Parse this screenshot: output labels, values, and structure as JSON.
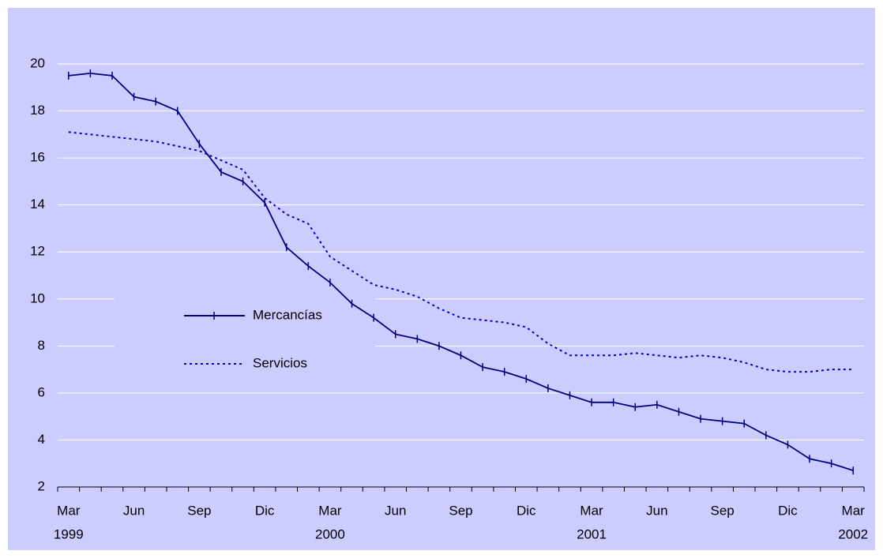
{
  "chart_data": {
    "type": "line",
    "categories": [
      "Mar",
      null,
      null,
      "Jun",
      null,
      null,
      "Sep",
      null,
      null,
      "Dic",
      null,
      null,
      "Mar",
      null,
      null,
      "Jun",
      null,
      null,
      "Sep",
      null,
      null,
      "Dic",
      null,
      null,
      "Mar",
      null,
      null,
      "Jun",
      null,
      null,
      "Sep",
      null,
      null,
      "Dic",
      null,
      null,
      "Mar"
    ],
    "years": [
      "1999",
      null,
      null,
      null,
      null,
      null,
      null,
      null,
      null,
      null,
      null,
      null,
      "2000",
      null,
      null,
      null,
      null,
      null,
      null,
      null,
      null,
      null,
      null,
      null,
      "2001",
      null,
      null,
      null,
      null,
      null,
      null,
      null,
      null,
      null,
      null,
      null,
      "2002"
    ],
    "series": [
      {
        "name": "Mercancías",
        "color": "#000080",
        "style": "solid-markers",
        "values": [
          19.5,
          19.6,
          19.5,
          18.6,
          18.4,
          18.0,
          16.6,
          15.4,
          15.0,
          14.1,
          12.2,
          11.4,
          10.7,
          9.8,
          9.2,
          8.5,
          8.3,
          8.0,
          7.6,
          7.1,
          6.9,
          6.6,
          6.2,
          5.9,
          5.6,
          5.6,
          5.4,
          5.5,
          5.2,
          4.9,
          4.8,
          4.7,
          4.2,
          3.8,
          3.2,
          3.0,
          2.7
        ]
      },
      {
        "name": "Servicios",
        "color": "#0000cc",
        "style": "dotted",
        "values": [
          17.1,
          17.0,
          16.9,
          16.8,
          16.7,
          16.5,
          16.3,
          15.9,
          15.5,
          14.3,
          13.6,
          13.2,
          11.8,
          11.2,
          10.6,
          10.4,
          10.1,
          9.6,
          9.2,
          9.1,
          9.0,
          8.8,
          8.1,
          7.6,
          7.6,
          7.6,
          7.7,
          7.6,
          7.5,
          7.6,
          7.5,
          7.3,
          7.0,
          6.9,
          6.9,
          7.0,
          7.0
        ]
      }
    ],
    "ylim": [
      2,
      20
    ],
    "yticks": [
      2,
      4,
      6,
      8,
      10,
      12,
      14,
      16,
      18,
      20
    ],
    "grid": true
  }
}
